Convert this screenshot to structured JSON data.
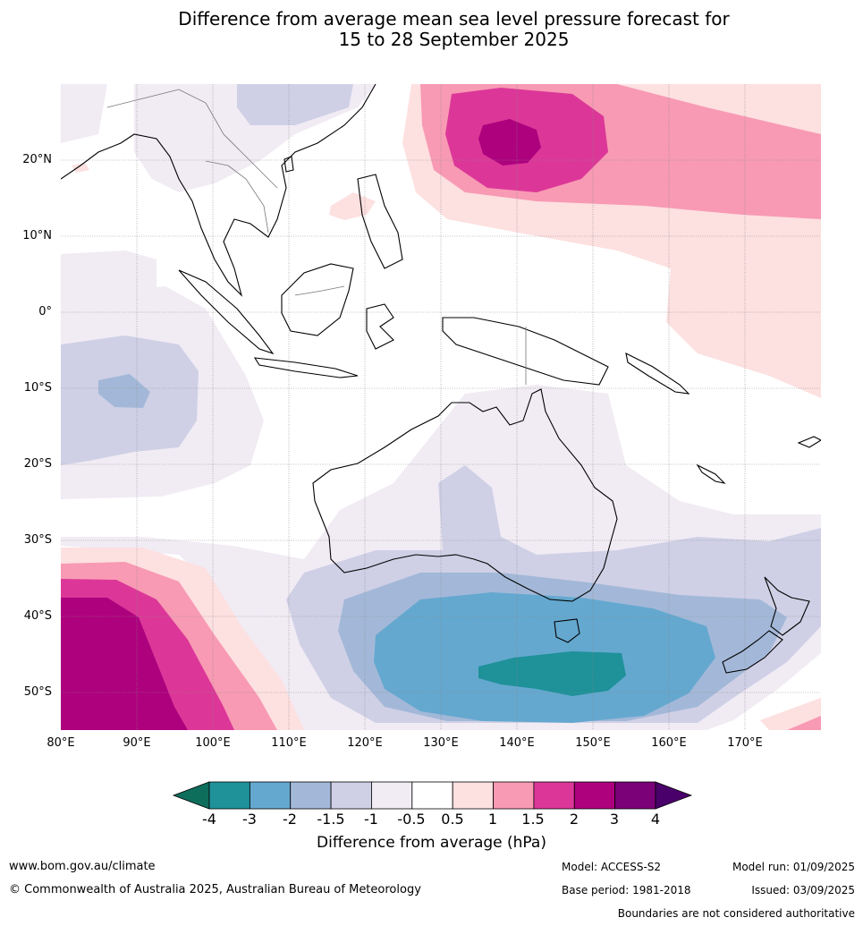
{
  "title": {
    "line1": "Difference from average mean sea level pressure forecast for",
    "line2": "15 to 28 September 2025"
  },
  "map": {
    "lat_labels": [
      "20°N",
      "10°N",
      "0°",
      "10°S",
      "20°S",
      "30°S",
      "40°S",
      "50°S"
    ],
    "lon_labels": [
      "80°E",
      "90°E",
      "100°E",
      "110°E",
      "120°E",
      "130°E",
      "140°E",
      "150°E",
      "160°E",
      "170°E"
    ]
  },
  "colorbar": {
    "title": "Difference from average (hPa)",
    "tick_labels": [
      "-4",
      "-3",
      "-2",
      "-1.5",
      "-1",
      "-0.5",
      "0.5",
      "1",
      "1.5",
      "2",
      "3",
      "4"
    ],
    "colors": [
      "#0e6e5c",
      "#1e9199",
      "#64a8cf",
      "#a3b8d8",
      "#cfd0e6",
      "#f1ebf4",
      "#ffffff",
      "#fde0e0",
      "#f89ab4",
      "#dc3798",
      "#ae017e",
      "#7a0177",
      "#49006a"
    ]
  },
  "footer": {
    "website": "www.bom.gov.au/climate",
    "copyright": "© Commonwealth of Australia 2025, Australian Bureau of Meteorology",
    "model": "Model: ACCESS-S2",
    "base_period": "Base period: 1981-2018",
    "model_run": "Model run: 01/09/2025",
    "issued": "Issued: 03/09/2025",
    "disclaimer": "Boundaries are not considered authoritative"
  }
}
